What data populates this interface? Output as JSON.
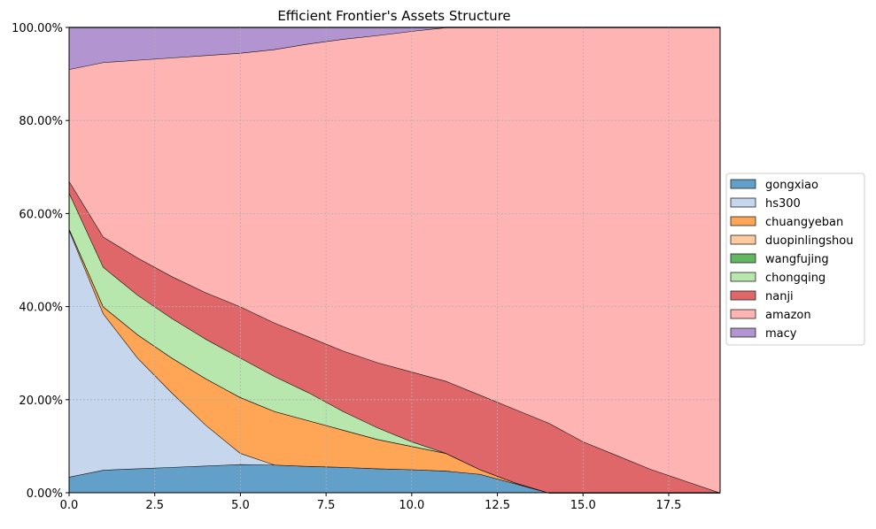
{
  "chart_data": {
    "type": "area",
    "stacked": true,
    "title": "Efficient Frontier's Assets Structure",
    "xlabel": "",
    "ylabel": "",
    "xlim": [
      0,
      19
    ],
    "ylim": [
      0,
      100
    ],
    "grid": true,
    "legend_placement": "center-right outside",
    "x_ticks": [
      "0.0",
      "2.5",
      "5.0",
      "7.5",
      "10.0",
      "12.5",
      "15.0",
      "17.5"
    ],
    "x_tick_values": [
      0,
      2.5,
      5,
      7.5,
      10,
      12.5,
      15,
      17.5
    ],
    "y_ticks": [
      "0.00%",
      "20.00%",
      "40.00%",
      "60.00%",
      "80.00%",
      "100.00%"
    ],
    "y_tick_values": [
      0,
      20,
      40,
      60,
      80,
      100
    ],
    "x": [
      0,
      1,
      2,
      3,
      4,
      5,
      6,
      7,
      8,
      9,
      10,
      11,
      12,
      13,
      14,
      15,
      16,
      17,
      18,
      19
    ],
    "series": [
      {
        "name": "gongxiao",
        "color": "#62a0ca",
        "values": [
          3.4,
          4.9,
          5.2,
          5.5,
          5.8,
          6.1,
          6.0,
          5.7,
          5.5,
          5.2,
          5.0,
          4.7,
          4.0,
          2.0,
          0,
          0,
          0,
          0,
          0,
          0
        ]
      },
      {
        "name": "hs300",
        "color": "#c6d7ed",
        "values": [
          53.1,
          33.6,
          23.8,
          16,
          8.7,
          2.4,
          0,
          0,
          0,
          0,
          0,
          0,
          0,
          0,
          0,
          0,
          0,
          0,
          0,
          0
        ]
      },
      {
        "name": "chuangyeban",
        "color": "#ffa556",
        "values": [
          0.3,
          1.5,
          5,
          7.5,
          10,
          12,
          11.5,
          9.8,
          8,
          6.3,
          5,
          3.8,
          1,
          0.2,
          0,
          0,
          0,
          0,
          0,
          0
        ]
      },
      {
        "name": "duopinlingshou",
        "color": "#ffcb9e",
        "values": [
          0,
          0,
          0,
          0,
          0,
          0,
          0,
          0,
          0,
          0,
          0,
          0,
          0,
          0,
          0,
          0,
          0,
          0,
          0,
          0
        ]
      },
      {
        "name": "wangfujing",
        "color": "#62b861",
        "values": [
          0,
          0,
          0,
          0,
          0,
          0,
          0,
          0,
          0,
          0,
          0,
          0,
          0,
          0,
          0,
          0,
          0,
          0,
          0,
          0
        ]
      },
      {
        "name": "chongqing",
        "color": "#b7e7ac",
        "values": [
          7.7,
          8.5,
          8.5,
          8.5,
          8.5,
          8.5,
          7.5,
          6,
          4,
          2.5,
          1,
          0,
          0,
          0,
          0,
          0,
          0,
          0,
          0,
          0
        ]
      },
      {
        "name": "nanji",
        "color": "#e06769",
        "values": [
          2.5,
          6.5,
          8,
          9,
          10,
          11,
          11.5,
          12,
          13,
          14,
          15,
          15.5,
          16,
          15.8,
          15,
          11,
          8,
          5,
          2.5,
          0
        ]
      },
      {
        "name": "amazon",
        "color": "#ffb4b4",
        "values": [
          24,
          37.5,
          42.5,
          47,
          51,
          54.5,
          58.8,
          63,
          67,
          70.3,
          73.2,
          76,
          79,
          82,
          85,
          89,
          92,
          95,
          97.5,
          100
        ]
      },
      {
        "name": "macy",
        "color": "#b294d1",
        "values": [
          9,
          7.5,
          7,
          6.5,
          6,
          5.5,
          4.7,
          3.5,
          2.5,
          1.7,
          0.8,
          0,
          0,
          0,
          0,
          0,
          0,
          0,
          0,
          0
        ]
      }
    ]
  }
}
